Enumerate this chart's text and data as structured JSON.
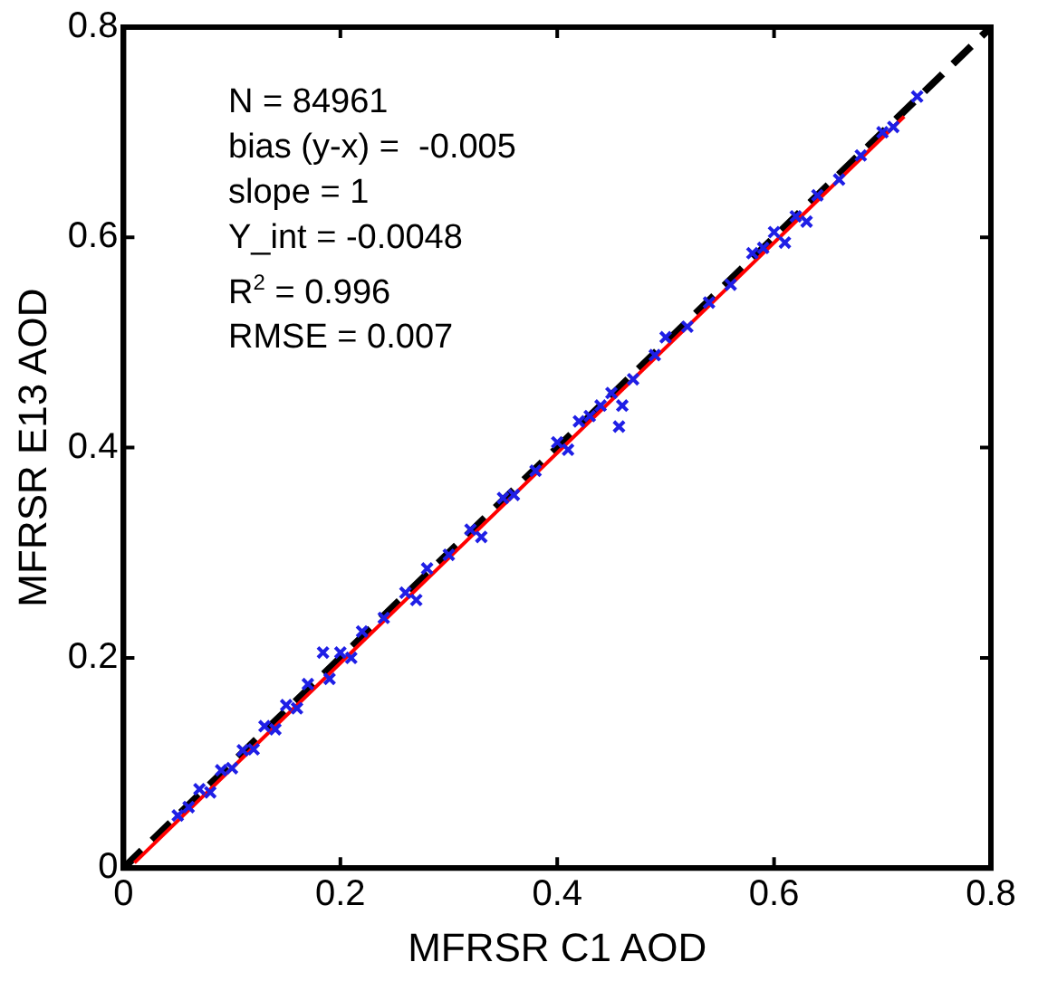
{
  "chart_data": {
    "type": "scatter",
    "xlabel": "MFRSR C1 AOD",
    "ylabel": "MFRSR E13 AOD",
    "xlim": [
      0,
      0.8
    ],
    "ylim": [
      0,
      0.8
    ],
    "xticks": [
      0,
      0.2,
      0.4,
      0.6,
      0.8
    ],
    "yticks": [
      0,
      0.2,
      0.4,
      0.6,
      0.8
    ],
    "grid": false,
    "legend": false,
    "annotations": [
      "N = 84961",
      "bias (y-x) =  -0.005",
      "slope = 1",
      "Y_int = -0.0048",
      "R$^{2}$ = 0.996",
      "RMSE = 0.007"
    ],
    "series": [
      {
        "type": "scatter",
        "color": "#1f1fe6",
        "marker": "cross",
        "x": [
          0.05,
          0.06,
          0.07,
          0.08,
          0.09,
          0.1,
          0.11,
          0.12,
          0.13,
          0.14,
          0.15,
          0.16,
          0.17,
          0.184,
          0.19,
          0.2,
          0.21,
          0.22,
          0.24,
          0.26,
          0.27,
          0.28,
          0.3,
          0.32,
          0.33,
          0.35,
          0.36,
          0.38,
          0.4,
          0.41,
          0.42,
          0.43,
          0.44,
          0.45,
          0.46,
          0.457,
          0.47,
          0.49,
          0.5,
          0.52,
          0.54,
          0.56,
          0.58,
          0.59,
          0.6,
          0.61,
          0.62,
          0.63,
          0.64,
          0.66,
          0.68,
          0.7,
          0.71,
          0.732
        ],
        "values": [
          0.05,
          0.058,
          0.075,
          0.072,
          0.093,
          0.095,
          0.112,
          0.113,
          0.135,
          0.132,
          0.155,
          0.152,
          0.175,
          0.205,
          0.18,
          0.205,
          0.2,
          0.225,
          0.238,
          0.262,
          0.255,
          0.285,
          0.298,
          0.322,
          0.315,
          0.352,
          0.355,
          0.378,
          0.405,
          0.398,
          0.425,
          0.43,
          0.44,
          0.452,
          0.44,
          0.42,
          0.465,
          0.488,
          0.505,
          0.515,
          0.538,
          0.555,
          0.585,
          0.59,
          0.605,
          0.595,
          0.62,
          0.615,
          0.64,
          0.655,
          0.678,
          0.7,
          0.705,
          0.734
        ]
      },
      {
        "type": "line",
        "color": "#ff0000",
        "line_style": "solid",
        "marker": "none",
        "x": [
          0.01,
          0.72
        ],
        "values": [
          0.005,
          0.715
        ]
      },
      {
        "type": "line",
        "color": "#000000",
        "line_style": "dashed",
        "marker": "none",
        "x": [
          0,
          0.8
        ],
        "values": [
          0,
          0.8
        ]
      }
    ]
  }
}
